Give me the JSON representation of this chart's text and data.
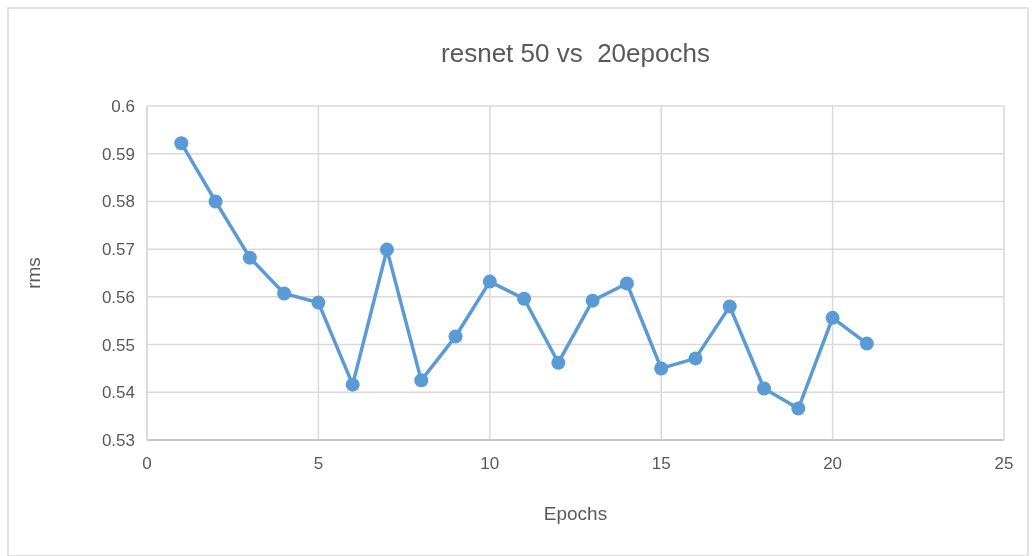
{
  "chart_data": {
    "type": "line",
    "title": "resnet 50 vs  20epochs",
    "xlabel": "Epochs",
    "ylabel": "rms",
    "x": [
      1,
      2,
      3,
      4,
      5,
      6,
      7,
      8,
      9,
      10,
      11,
      12,
      13,
      14,
      15,
      16,
      17,
      18,
      19,
      20,
      21
    ],
    "series": [
      {
        "color": "#5b9bd5",
        "values": [
          0.5922,
          0.58,
          0.5682,
          0.5607,
          0.5588,
          0.5416,
          0.5699,
          0.5425,
          0.5517,
          0.5632,
          0.5596,
          0.5462,
          0.5592,
          0.5628,
          0.545,
          0.5471,
          0.558,
          0.5408,
          0.5366,
          0.5556,
          0.5502
        ]
      }
    ],
    "xlim": [
      0,
      25
    ],
    "xticks": [
      0,
      5,
      10,
      15,
      20,
      25
    ],
    "ylim": [
      0.53,
      0.6
    ],
    "yticks": [
      0.53,
      0.54,
      0.55,
      0.56,
      0.57,
      0.58,
      0.59,
      {
        "value": 0.6,
        "label": "0.6"
      }
    ],
    "grid": true,
    "marker": "circle",
    "line_style": "solid"
  }
}
